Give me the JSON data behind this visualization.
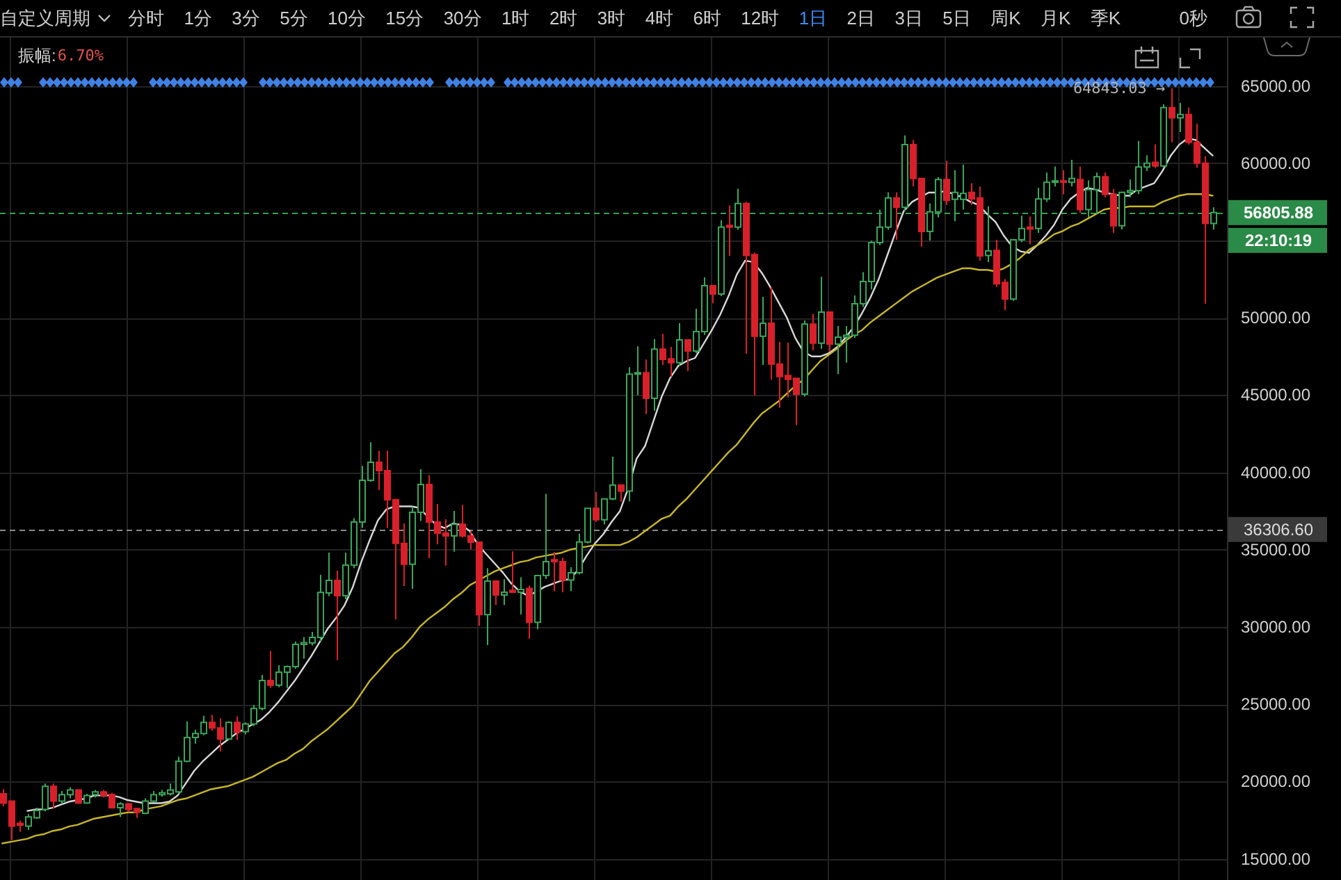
{
  "chart_data": {
    "type": "candlestick",
    "categories": [
      null,
      null,
      null,
      null,
      null,
      null,
      null,
      null,
      null,
      null,
      null,
      null,
      null,
      null,
      null,
      null,
      null,
      null,
      null,
      null,
      null,
      null,
      null,
      null,
      null,
      null,
      null,
      null,
      null,
      null,
      null,
      null,
      null,
      null,
      null,
      null,
      null,
      null,
      null,
      null,
      null,
      null,
      null,
      null,
      null,
      null,
      null,
      null,
      null,
      null,
      null,
      null,
      null,
      null,
      null,
      null,
      null,
      null,
      null,
      null,
      null,
      null,
      null,
      null,
      null,
      null,
      null,
      null,
      null,
      null,
      null,
      null,
      null,
      null,
      null,
      null,
      null,
      null,
      null,
      null,
      null,
      null,
      null,
      null,
      null,
      null,
      null,
      null,
      null,
      null,
      null,
      null,
      null,
      null,
      null,
      null,
      null,
      null,
      null,
      null,
      null,
      null,
      null,
      null,
      null,
      null,
      null,
      null,
      null,
      null,
      null,
      null,
      null,
      null,
      null,
      null,
      null,
      null,
      null,
      null,
      null,
      null,
      null,
      null,
      null,
      null,
      null,
      null,
      null,
      null,
      null,
      null,
      null,
      null,
      null,
      null,
      null,
      null,
      null,
      null,
      null,
      null,
      null,
      null,
      null,
      null
    ],
    "ohlc": [
      [
        19210,
        19510,
        18400,
        18610
      ],
      [
        18730,
        18730,
        16210,
        17110
      ],
      [
        17290,
        17470,
        16750,
        17170
      ],
      [
        17110,
        17890,
        16870,
        17710
      ],
      [
        17650,
        18310,
        17590,
        18130
      ],
      [
        18190,
        19870,
        18070,
        19690
      ],
      [
        19690,
        19870,
        18250,
        18730
      ],
      [
        18730,
        19390,
        18550,
        19150
      ],
      [
        19150,
        19630,
        18910,
        19450
      ],
      [
        19450,
        19510,
        18550,
        18610
      ],
      [
        18610,
        19210,
        18550,
        19090
      ],
      [
        19150,
        19450,
        18970,
        19330
      ],
      [
        19330,
        19450,
        18970,
        19090
      ],
      [
        19150,
        19270,
        18250,
        18310
      ],
      [
        18310,
        18670,
        17710,
        18550
      ],
      [
        18550,
        18610,
        18010,
        18190
      ],
      [
        18250,
        18250,
        17650,
        18010
      ],
      [
        17950,
        18910,
        17890,
        18730
      ],
      [
        18730,
        19390,
        18670,
        19150
      ],
      [
        19150,
        19450,
        19030,
        19270
      ],
      [
        19210,
        19870,
        19090,
        19450
      ],
      [
        19330,
        21610,
        19210,
        21310
      ],
      [
        21310,
        23890,
        21250,
        22850
      ],
      [
        22850,
        23350,
        22450,
        23110
      ],
      [
        23110,
        24250,
        22990,
        23830
      ],
      [
        23830,
        24310,
        23290,
        23470
      ],
      [
        23470,
        24100,
        21950,
        22750
      ],
      [
        22750,
        23890,
        22690,
        23830
      ],
      [
        23830,
        24220,
        22690,
        23190
      ],
      [
        23230,
        23830,
        23050,
        23720
      ],
      [
        23720,
        24950,
        23590,
        24730
      ],
      [
        24730,
        26890,
        24600,
        26530
      ],
      [
        26530,
        28450,
        26050,
        26230
      ],
      [
        26230,
        27520,
        26100,
        27070
      ],
      [
        27070,
        27500,
        26050,
        27430
      ],
      [
        27430,
        29050,
        27300,
        28870
      ],
      [
        28870,
        29350,
        27940,
        28990
      ],
      [
        28960,
        29680,
        28800,
        29320
      ],
      [
        29320,
        33370,
        29050,
        32230
      ],
      [
        32200,
        34810,
        31990,
        33010
      ],
      [
        33010,
        33640,
        27850,
        32020
      ],
      [
        32020,
        34810,
        31800,
        34000
      ],
      [
        34000,
        37030,
        33800,
        36790
      ],
      [
        36790,
        40420,
        36400,
        39490
      ],
      [
        39490,
        41950,
        39400,
        40660
      ],
      [
        40660,
        41410,
        38860,
        40120
      ],
      [
        40120,
        41410,
        36400,
        38230
      ],
      [
        38230,
        38300,
        30490,
        35410
      ],
      [
        35410,
        36700,
        32650,
        34060
      ],
      [
        34060,
        37780,
        32470,
        37420
      ],
      [
        37420,
        40210,
        36850,
        39220
      ],
      [
        39220,
        39820,
        34450,
        36790
      ],
      [
        36790,
        37960,
        35350,
        36070
      ],
      [
        36070,
        36970,
        33970,
        35890
      ],
      [
        35890,
        37510,
        34870,
        36640
      ],
      [
        36640,
        37900,
        35800,
        35890
      ],
      [
        35890,
        36210,
        35010,
        35480
      ],
      [
        35480,
        35500,
        30080,
        30800
      ],
      [
        30800,
        33810,
        28830,
        32970
      ],
      [
        32970,
        33000,
        31410,
        32070
      ],
      [
        32070,
        33090,
        31410,
        32250
      ],
      [
        32370,
        34890,
        32200,
        32250
      ],
      [
        32250,
        33210,
        30810,
        32430
      ],
      [
        32490,
        32670,
        29250,
        30300
      ],
      [
        30300,
        33330,
        29850,
        33330
      ],
      [
        33330,
        38610,
        33100,
        34230
      ],
      [
        34350,
        34860,
        32310,
        34230
      ],
      [
        34230,
        34470,
        32250,
        33030
      ],
      [
        33030,
        33870,
        32310,
        33510
      ],
      [
        33510,
        36030,
        33400,
        35490
      ],
      [
        35490,
        37700,
        35400,
        37680
      ],
      [
        37680,
        38730,
        36800,
        36930
      ],
      [
        36930,
        38300,
        36630,
        38280
      ],
      [
        38280,
        41010,
        38200,
        39180
      ],
      [
        39180,
        39200,
        38100,
        38790
      ],
      [
        38790,
        46800,
        38130,
        46350
      ],
      [
        46350,
        48150,
        45000,
        46440
      ],
      [
        46440,
        47300,
        43770,
        44790
      ],
      [
        44790,
        48630,
        43980,
        47970
      ],
      [
        47970,
        48960,
        46950,
        47310
      ],
      [
        47340,
        48120,
        46200,
        47100
      ],
      [
        47100,
        49650,
        46900,
        48570
      ],
      [
        48570,
        48600,
        46560,
        47850
      ],
      [
        47850,
        50580,
        47700,
        49110
      ],
      [
        49110,
        52620,
        48900,
        52080
      ],
      [
        52080,
        52100,
        50940,
        51540
      ],
      [
        51540,
        56310,
        51400,
        55860
      ],
      [
        55980,
        57270,
        54000,
        55860
      ],
      [
        55860,
        58350,
        55700,
        57390
      ],
      [
        57390,
        57510,
        47670,
        54030
      ],
      [
        54090,
        54210,
        44970,
        48810
      ],
      [
        48810,
        51360,
        46950,
        49650
      ],
      [
        49650,
        51990,
        46000,
        47010
      ],
      [
        47010,
        48450,
        44190,
        46200
      ],
      [
        46260,
        48390,
        44850,
        46020
      ],
      [
        46080,
        46080,
        43050,
        45060
      ],
      [
        45060,
        49830,
        44900,
        49590
      ],
      [
        49590,
        50250,
        47900,
        48360
      ],
      [
        48360,
        52650,
        48000,
        50370
      ],
      [
        50370,
        50370,
        47800,
        48300
      ],
      [
        48300,
        49470,
        46350,
        48750
      ],
      [
        48750,
        49470,
        47100,
        48870
      ],
      [
        48870,
        51450,
        48700,
        50910
      ],
      [
        50910,
        52950,
        50700,
        52350
      ],
      [
        52350,
        54990,
        51840,
        54870
      ],
      [
        54870,
        57000,
        54700,
        55860
      ],
      [
        55860,
        58110,
        55700,
        57750
      ],
      [
        57750,
        58110,
        55050,
        57150
      ],
      [
        57150,
        61800,
        56900,
        61200
      ],
      [
        61200,
        61500,
        58500,
        59010
      ],
      [
        59010,
        59010,
        54600,
        55590
      ],
      [
        55590,
        57390,
        55000,
        56850
      ],
      [
        56850,
        59100,
        56500,
        58950
      ],
      [
        58950,
        60150,
        57300,
        57600
      ],
      [
        57660,
        59550,
        56250,
        58110
      ],
      [
        57660,
        59910,
        57000,
        58050
      ],
      [
        58110,
        58710,
        57300,
        57690
      ],
      [
        57750,
        58500,
        53700,
        54000
      ],
      [
        54030,
        57210,
        53600,
        54330
      ],
      [
        54360,
        55050,
        52000,
        52200
      ],
      [
        52290,
        52500,
        50490,
        51210
      ],
      [
        51210,
        55050,
        51100,
        55050
      ],
      [
        55050,
        56610,
        54900,
        55770
      ],
      [
        55860,
        56550,
        54750,
        55740
      ],
      [
        55770,
        58410,
        55500,
        57690
      ],
      [
        57690,
        59400,
        57500,
        58770
      ],
      [
        58770,
        59790,
        58500,
        58860
      ],
      [
        58860,
        59550,
        57990,
        58770
      ],
      [
        58770,
        60210,
        58500,
        59010
      ],
      [
        58950,
        59790,
        56800,
        57000
      ],
      [
        57000,
        58890,
        56500,
        58290
      ],
      [
        58290,
        59400,
        56700,
        59130
      ],
      [
        59130,
        59400,
        57800,
        57990
      ],
      [
        57990,
        58350,
        55500,
        55950
      ],
      [
        55950,
        58170,
        55710,
        58110
      ],
      [
        58110,
        58950,
        57800,
        58230
      ],
      [
        58230,
        61440,
        58000,
        59760
      ],
      [
        59760,
        60510,
        59500,
        60000
      ],
      [
        60060,
        61230,
        59700,
        59820
      ],
      [
        59820,
        63810,
        59700,
        63600
      ],
      [
        63600,
        64843.03,
        61350,
        62940
      ],
      [
        62940,
        63900,
        62010,
        63150
      ],
      [
        63150,
        63600,
        61200,
        61350
      ],
      [
        61350,
        62550,
        59700,
        60000
      ],
      [
        60000,
        60450,
        50910,
        56100
      ],
      [
        56100,
        57150,
        55710,
        56805.88
      ]
    ],
    "series": [
      {
        "type": "line",
        "color": "#d9d9d9",
        "values": [
          null,
          null,
          null,
          18100,
          18200,
          18200,
          18300,
          18500,
          18700,
          18800,
          18900,
          19100,
          19100,
          19100,
          19000,
          18800,
          18700,
          18600,
          18600,
          18600,
          18700,
          19100,
          19900,
          20700,
          21300,
          21800,
          22300,
          22700,
          23100,
          23400,
          23700,
          24000,
          24500,
          25100,
          25800,
          26500,
          27300,
          28100,
          29000,
          29900,
          30600,
          31400,
          32600,
          34200,
          35600,
          36900,
          37600,
          37800,
          37800,
          37800,
          37700,
          37100,
          36600,
          36400,
          36700,
          36600,
          36200,
          35300,
          34700,
          34100,
          33500,
          32800,
          32300,
          32000,
          32300,
          32600,
          32800,
          33000,
          33100,
          33700,
          34600,
          35400,
          36000,
          36800,
          37500,
          39000,
          40900,
          41700,
          43300,
          44900,
          46100,
          46900,
          47200,
          47400,
          48300,
          49200,
          50200,
          51400,
          52800,
          53700,
          53600,
          52900,
          52000,
          51000,
          50000,
          48700,
          47800,
          47500,
          47500,
          47700,
          48100,
          48700,
          49400,
          50300,
          51300,
          52500,
          54000,
          55500,
          56900,
          57500,
          57800,
          58100,
          58100,
          58200,
          58000,
          57800,
          57500,
          57300,
          56700,
          56200,
          55300,
          54600,
          54300,
          54200,
          54700,
          55300,
          56000,
          57000,
          57700,
          58100,
          58400,
          58300,
          58100,
          58000,
          57900,
          57900,
          58300,
          58500,
          58700,
          59500,
          60500,
          61200,
          61600,
          61500,
          61000,
          60500
        ]
      },
      {
        "type": "line",
        "color": "#c8b72a",
        "values": [
          16000,
          16100,
          16200,
          16300,
          16500,
          16600,
          16800,
          16900,
          17100,
          17200,
          17400,
          17600,
          17700,
          17800,
          17900,
          18000,
          18000,
          18200,
          18300,
          18400,
          18600,
          18800,
          18900,
          19100,
          19300,
          19500,
          19600,
          19700,
          19900,
          20100,
          20300,
          20600,
          20900,
          21200,
          21400,
          21800,
          22100,
          22600,
          23000,
          23400,
          23900,
          24400,
          24900,
          25700,
          26500,
          27100,
          27700,
          28300,
          28700,
          29300,
          30000,
          30500,
          30900,
          31300,
          31800,
          32200,
          32700,
          33000,
          33300,
          33600,
          33800,
          34000,
          34200,
          34300,
          34500,
          34600,
          34700,
          34800,
          35000,
          35100,
          35200,
          35300,
          35300,
          35300,
          35300,
          35500,
          35800,
          36200,
          36600,
          37000,
          37200,
          37800,
          38300,
          38900,
          39500,
          40100,
          40700,
          41300,
          41800,
          42500,
          43200,
          43800,
          44200,
          44600,
          45100,
          45600,
          46000,
          46600,
          47200,
          47600,
          48000,
          48500,
          48900,
          49200,
          49700,
          50100,
          50500,
          50900,
          51300,
          51700,
          52000,
          52300,
          52600,
          52800,
          53000,
          53200,
          53200,
          53100,
          53100,
          53000,
          53200,
          53500,
          53900,
          54400,
          54700,
          55000,
          55400,
          55600,
          55900,
          56100,
          56400,
          56700,
          57000,
          57100,
          57100,
          57200,
          57200,
          57200,
          57200,
          57500,
          57700,
          57900,
          58000,
          58000,
          58000,
          57900
        ]
      }
    ],
    "ylim": [
      13630,
      68130
    ],
    "yticks": [
      {
        "value": 15000,
        "label": "15000.00"
      },
      {
        "value": 20000,
        "label": "20000.00"
      },
      {
        "value": 25000,
        "label": "25000.00"
      },
      {
        "value": 30000,
        "label": "30000.00"
      },
      {
        "value": 35000,
        "label": "35000.00"
      },
      {
        "value": 40000,
        "label": "40000.00"
      },
      {
        "value": 45000,
        "label": "45000.00"
      },
      {
        "value": 50000,
        "label": "50000.00"
      },
      {
        "value": 55000,
        "label": null
      },
      {
        "value": 60000,
        "label": "60000.00"
      },
      {
        "value": 65000,
        "label": "65000.00"
      }
    ],
    "ref_lines": [
      {
        "axis": "y",
        "value": 56805.88,
        "label": "56805.88",
        "color": "#2ea44f",
        "line_style": "dashed"
      },
      {
        "axis": "y",
        "value": 36306.6,
        "label": "36306.60",
        "color": "#8c8c8c",
        "line_style": "dashed"
      }
    ],
    "annotations": [
      "自定义周期",
      "分时",
      "1分",
      "3分",
      "5分",
      "10分",
      "15分",
      "30分",
      "1时",
      "2时",
      "3时",
      "4时",
      "6时",
      "12时",
      "1日",
      "2日",
      "3日",
      "5日",
      "周K",
      "月K",
      "季K",
      "0秒",
      "振幅:",
      "6.70%",
      "22:10:19",
      "64843.03 →"
    ],
    "grid": true,
    "tick_labels": "y"
  }
}
